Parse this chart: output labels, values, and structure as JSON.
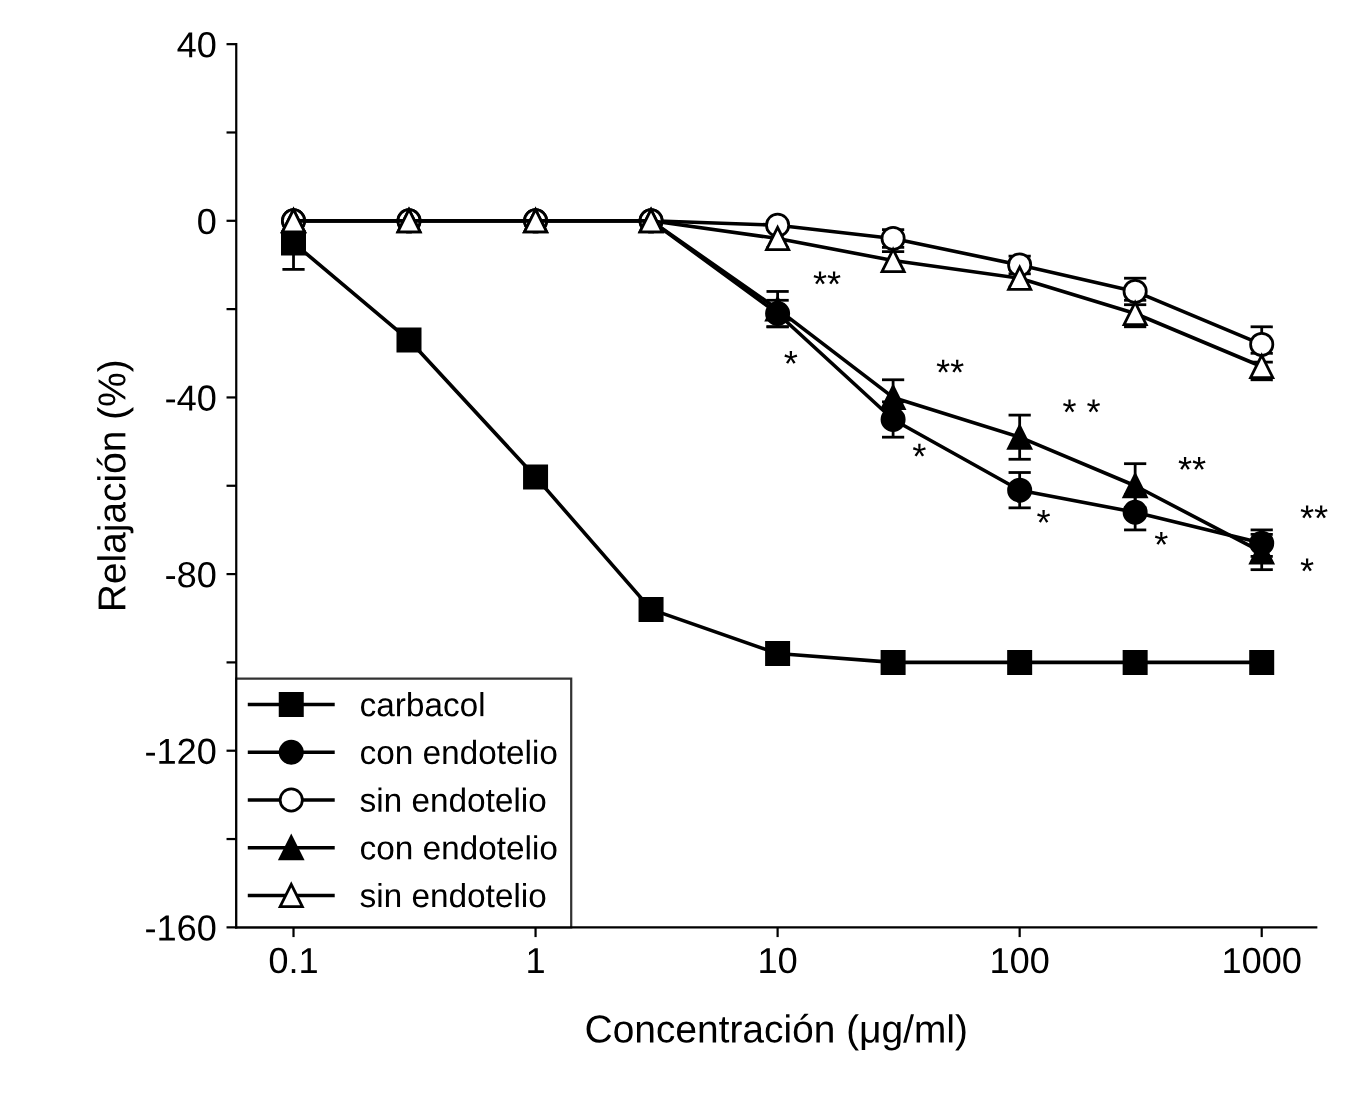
{
  "chart_data": {
    "type": "line",
    "xlabel": "Concentración (μg/ml)",
    "ylabel": "Relajación (%)",
    "x": [
      0.1,
      0.3,
      1,
      3,
      10,
      30,
      100,
      300,
      1000
    ],
    "log": "x",
    "xlim": [
      0.058,
      1680
    ],
    "ylim": [
      -160,
      40
    ],
    "xticks": [
      0.1,
      1,
      10,
      100,
      1000
    ],
    "yticks": [
      {
        "value": -160,
        "label": "-160"
      },
      {
        "value": -140,
        "label": null
      },
      {
        "value": -120,
        "label": "-120"
      },
      {
        "value": -100,
        "label": null
      },
      {
        "value": -80,
        "label": "-80"
      },
      {
        "value": -60,
        "label": null
      },
      {
        "value": -40,
        "label": "-40"
      },
      {
        "value": -20,
        "label": null
      },
      0,
      {
        "value": 20,
        "label": null
      },
      40
    ],
    "grid": false,
    "legend": "bottom left",
    "line_style": "solid",
    "series": [
      {
        "name": "carbacol",
        "color": "#000000",
        "marker": "square",
        "values": [
          -5,
          -27,
          -58,
          -88,
          -98,
          -100,
          -100,
          -100,
          -100
        ],
        "errors": [
          6,
          null,
          null,
          2,
          2,
          null,
          null,
          null,
          null
        ]
      },
      {
        "name": "con endotelio",
        "color": "#000000",
        "marker": "circle",
        "values": [
          0,
          0,
          0,
          0,
          -21,
          -45,
          -61,
          -66,
          -73
        ],
        "errors": [
          null,
          null,
          null,
          null,
          3,
          4,
          4,
          4,
          3
        ]
      },
      {
        "name": "sin endotelio",
        "color": "#000000",
        "marker": "circle open",
        "values": [
          0,
          0,
          0,
          0,
          -1,
          -4,
          -10,
          -16,
          -28
        ],
        "errors": [
          null,
          null,
          null,
          null,
          1,
          2,
          2,
          3,
          4
        ]
      },
      {
        "name": "con endotelio",
        "color": "#000000",
        "marker": "triangle",
        "values": [
          0,
          0,
          0,
          0,
          -20,
          -40,
          -49,
          -60,
          -75
        ],
        "errors": [
          null,
          null,
          null,
          null,
          4,
          4,
          5,
          5,
          4
        ]
      },
      {
        "name": "sin endotelio",
        "color": "#000000",
        "marker": "triangle open",
        "values": [
          0,
          0,
          0,
          0,
          -4,
          -9,
          -13,
          -21,
          -33
        ],
        "errors": [
          null,
          null,
          null,
          null,
          2,
          2,
          2,
          3,
          3
        ]
      }
    ],
    "annotations": [
      "**",
      "*",
      "**",
      "*",
      "* *",
      "*",
      "**",
      "*",
      "**",
      "*"
    ]
  }
}
